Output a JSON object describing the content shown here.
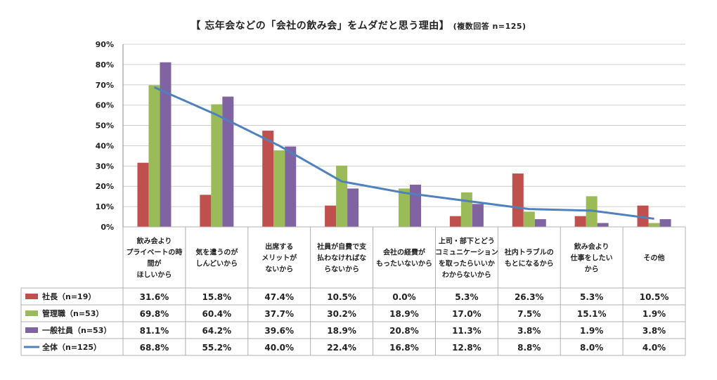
{
  "title": "【 忘年会などの「会社の飲み会」をムダだと思う理由】",
  "subtitle": "(複数回答 n=125)",
  "chart_data": {
    "type": "bar",
    "ylim": [
      0,
      90
    ],
    "yticks": [
      "0%",
      "10%",
      "20%",
      "30%",
      "40%",
      "50%",
      "60%",
      "70%",
      "80%",
      "90%"
    ],
    "grid": true,
    "categories": [
      [
        "飲み会より",
        "プライベートの時",
        "間が",
        "ほしいから"
      ],
      [
        "気を遣うのが",
        "しんどいから"
      ],
      [
        "出席する",
        "メリットが",
        "ないから"
      ],
      [
        "社員が自費で支",
        "払わなければな",
        "らないから"
      ],
      [
        "会社の経費が",
        "もったいないから"
      ],
      [
        "上司・部下とどう",
        "コミュニケーション",
        "を取ったらいいか",
        "わからないから"
      ],
      [
        "社内トラブルの",
        "もとになるから"
      ],
      [
        "飲み会より",
        "仕事をしたい",
        "から"
      ],
      [
        "その他"
      ]
    ],
    "series": [
      {
        "name": "社長（n=19）",
        "kind": "bar",
        "color": "#c0504d",
        "values": [
          31.6,
          15.8,
          47.4,
          10.5,
          0.0,
          5.3,
          26.3,
          5.3,
          10.5
        ],
        "labels": [
          "31.6%",
          "15.8%",
          "47.4%",
          "10.5%",
          "0.0%",
          "5.3%",
          "26.3%",
          "5.3%",
          "10.5%"
        ]
      },
      {
        "name": "管理職（n=53）",
        "kind": "bar",
        "color": "#9bbb59",
        "values": [
          69.8,
          60.4,
          37.7,
          30.2,
          18.9,
          17.0,
          7.5,
          15.1,
          1.9
        ],
        "labels": [
          "69.8%",
          "60.4%",
          "37.7%",
          "30.2%",
          "18.9%",
          "17.0%",
          "7.5%",
          "15.1%",
          "1.9%"
        ]
      },
      {
        "name": "一般社員（n=53）",
        "kind": "bar",
        "color": "#8064a2",
        "values": [
          81.1,
          64.2,
          39.6,
          18.9,
          20.8,
          11.3,
          3.8,
          1.9,
          3.8
        ],
        "labels": [
          "81.1%",
          "64.2%",
          "39.6%",
          "18.9%",
          "20.8%",
          "11.3%",
          "3.8%",
          "1.9%",
          "3.8%"
        ]
      },
      {
        "name": "全体（n=125）",
        "kind": "line",
        "color": "#4f81bd",
        "values": [
          68.8,
          55.2,
          40.0,
          22.4,
          16.8,
          12.8,
          8.8,
          8.0,
          4.0
        ],
        "labels": [
          "68.8%",
          "55.2%",
          "40.0%",
          "22.4%",
          "16.8%",
          "12.8%",
          "8.8%",
          "8.0%",
          "4.0%"
        ]
      }
    ]
  }
}
